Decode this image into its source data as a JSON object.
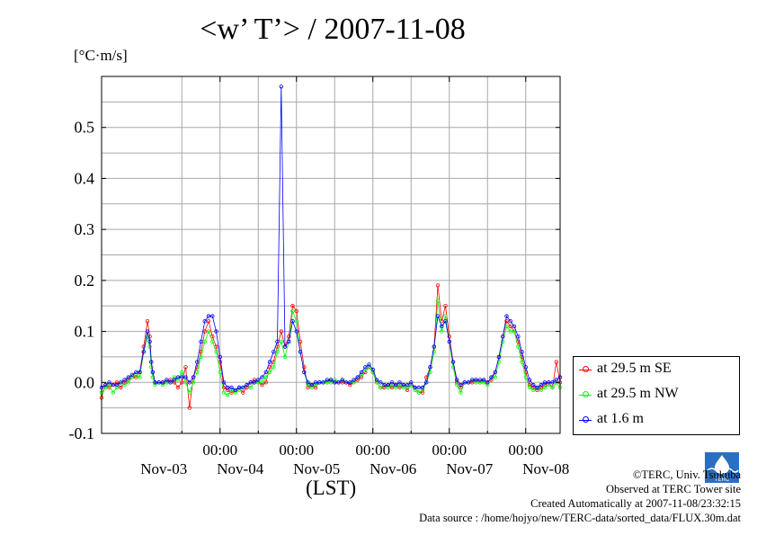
{
  "title": "<w’ T’> / 2007-11-08",
  "unit_label": "[°C·m/s]",
  "x_axis_label": "(LST)",
  "credits": {
    "copyright": "©TERC, Univ. Tsukuba",
    "site": "Observed at TERC Tower site",
    "created": "Created Automatically at 2007-11-08/23:32:15",
    "source": "Data source : /home/hojyo/new/TERC-data/sorted_data/FLUX.30m.dat"
  },
  "logo_text": "TERC",
  "chart_data": {
    "type": "line",
    "title": "<w’ T’> / 2007-11-08",
    "ylabel": "[°C·m/s]",
    "xlabel": "(LST)",
    "ylim": [
      -0.1,
      0.6
    ],
    "xlim_days": [
      -0.55,
      5.45
    ],
    "y_ticks": [
      -0.1,
      0.0,
      0.1,
      0.2,
      0.3,
      0.4,
      0.5
    ],
    "y_tick_labels": [
      "-0.1",
      "0.0",
      "0.1",
      "0.2",
      "0.3",
      "0.4",
      "0.5"
    ],
    "x_ticks_time": [
      1,
      2,
      3,
      4,
      5
    ],
    "x_tick_time_labels": [
      "00:00",
      "00:00",
      "00:00",
      "00:00",
      "00:00"
    ],
    "x_day_label_positions": [
      0.5,
      1.5,
      2.5,
      3.5,
      4.5,
      5.5
    ],
    "x_day_labels": [
      "Nov-03",
      "Nov-04",
      "Nov-05",
      "Nov-06",
      "Nov-07",
      "Nov-08"
    ],
    "grid": true,
    "legend_position": "right-bottom, outside plot",
    "series": [
      {
        "name": "at 29.5 m SE",
        "color": "#ff0000",
        "x": [
          -0.55,
          -0.5,
          -0.45,
          -0.4,
          -0.35,
          -0.3,
          -0.25,
          -0.2,
          -0.15,
          -0.1,
          -0.05,
          0.0,
          0.05,
          0.08,
          0.1,
          0.12,
          0.15,
          0.2,
          0.25,
          0.3,
          0.35,
          0.4,
          0.45,
          0.5,
          0.55,
          0.6,
          0.65,
          0.7,
          0.75,
          0.8,
          0.85,
          0.9,
          0.95,
          1.0,
          1.05,
          1.1,
          1.15,
          1.2,
          1.25,
          1.3,
          1.35,
          1.4,
          1.45,
          1.5,
          1.55,
          1.6,
          1.65,
          1.7,
          1.75,
          1.8,
          1.85,
          1.9,
          1.95,
          2.0,
          2.05,
          2.1,
          2.15,
          2.2,
          2.25,
          2.3,
          2.35,
          2.4,
          2.45,
          2.5,
          2.55,
          2.6,
          2.65,
          2.7,
          2.75,
          2.8,
          2.85,
          2.9,
          2.95,
          3.0,
          3.05,
          3.1,
          3.15,
          3.2,
          3.25,
          3.3,
          3.35,
          3.4,
          3.45,
          3.5,
          3.55,
          3.6,
          3.65,
          3.7,
          3.75,
          3.8,
          3.85,
          3.9,
          3.95,
          4.0,
          4.05,
          4.1,
          4.15,
          4.2,
          4.25,
          4.3,
          4.35,
          4.4,
          4.45,
          4.5,
          4.55,
          4.6,
          4.65,
          4.7,
          4.75,
          4.8,
          4.85,
          4.9,
          4.95,
          5.0,
          5.05,
          5.1,
          5.15,
          5.2,
          5.25,
          5.3,
          5.35,
          5.4,
          5.45
        ],
        "y": [
          -0.03,
          -0.005,
          -0.01,
          -0.005,
          0.0,
          -0.01,
          0.0,
          0.005,
          0.01,
          0.01,
          0.02,
          0.07,
          0.12,
          0.09,
          0.04,
          0.02,
          0.0,
          0.0,
          0.0,
          0.0,
          0.005,
          0.0,
          -0.01,
          0.0,
          0.03,
          -0.05,
          0.01,
          0.03,
          0.06,
          0.1,
          0.12,
          0.09,
          0.07,
          0.04,
          -0.01,
          -0.015,
          -0.02,
          -0.015,
          -0.01,
          -0.02,
          -0.01,
          0.0,
          0.005,
          0.0,
          -0.005,
          0.0,
          0.03,
          0.04,
          0.07,
          0.1,
          0.07,
          0.09,
          0.15,
          0.14,
          0.08,
          0.03,
          -0.01,
          -0.005,
          -0.01,
          0.0,
          0.0,
          0.0,
          0.005,
          0.0,
          0.0,
          0.0,
          0.0,
          -0.005,
          0.0,
          0.005,
          0.01,
          0.02,
          0.03,
          0.02,
          0.0,
          -0.01,
          -0.01,
          -0.005,
          -0.01,
          -0.005,
          -0.01,
          -0.005,
          -0.015,
          -0.005,
          -0.01,
          -0.02,
          -0.02,
          0.01,
          0.03,
          0.07,
          0.19,
          0.12,
          0.15,
          0.09,
          0.04,
          0.0,
          -0.01,
          0.0,
          0.0,
          0.0,
          0.005,
          0.0,
          0.005,
          0.0,
          0.005,
          0.02,
          0.05,
          0.09,
          0.12,
          0.11,
          0.1,
          0.08,
          0.05,
          0.02,
          -0.005,
          -0.01,
          -0.015,
          -0.01,
          -0.005,
          0.0,
          -0.01,
          0.04,
          0.0
        ]
      },
      {
        "name": "at 29.5 m NW",
        "color": "#00ff00",
        "x": [
          -0.55,
          -0.5,
          -0.45,
          -0.4,
          -0.35,
          -0.3,
          -0.25,
          -0.2,
          -0.15,
          -0.1,
          -0.05,
          0.0,
          0.05,
          0.08,
          0.1,
          0.12,
          0.15,
          0.2,
          0.25,
          0.3,
          0.35,
          0.4,
          0.45,
          0.5,
          0.55,
          0.6,
          0.65,
          0.7,
          0.75,
          0.8,
          0.85,
          0.9,
          0.95,
          1.0,
          1.05,
          1.1,
          1.15,
          1.2,
          1.25,
          1.3,
          1.35,
          1.4,
          1.45,
          1.5,
          1.55,
          1.6,
          1.65,
          1.7,
          1.75,
          1.8,
          1.85,
          1.9,
          1.95,
          2.0,
          2.05,
          2.1,
          2.15,
          2.2,
          2.25,
          2.3,
          2.35,
          2.4,
          2.45,
          2.5,
          2.55,
          2.6,
          2.65,
          2.7,
          2.75,
          2.8,
          2.85,
          2.9,
          2.95,
          3.0,
          3.05,
          3.1,
          3.15,
          3.2,
          3.25,
          3.3,
          3.35,
          3.4,
          3.45,
          3.5,
          3.55,
          3.6,
          3.65,
          3.7,
          3.75,
          3.8,
          3.85,
          3.9,
          3.95,
          4.0,
          4.05,
          4.1,
          4.15,
          4.2,
          4.25,
          4.3,
          4.35,
          4.4,
          4.45,
          4.5,
          4.55,
          4.6,
          4.65,
          4.7,
          4.75,
          4.8,
          4.85,
          4.9,
          4.95,
          5.0,
          5.05,
          5.1,
          5.15,
          5.2,
          5.25,
          5.3,
          5.35,
          5.4,
          5.45
        ],
        "y": [
          -0.02,
          -0.01,
          -0.005,
          -0.02,
          -0.01,
          0.0,
          -0.005,
          0.0,
          0.01,
          0.015,
          0.01,
          0.06,
          0.09,
          0.07,
          0.03,
          0.01,
          -0.005,
          0.0,
          -0.005,
          0.0,
          0.0,
          0.01,
          0.005,
          0.02,
          0.0,
          -0.02,
          0.0,
          0.02,
          0.05,
          0.08,
          0.1,
          0.08,
          0.06,
          0.02,
          -0.02,
          -0.025,
          -0.015,
          -0.02,
          -0.015,
          -0.01,
          -0.005,
          -0.01,
          0.0,
          0.0,
          0.0,
          0.01,
          0.02,
          0.03,
          0.06,
          0.08,
          0.05,
          0.08,
          0.14,
          0.12,
          0.06,
          0.02,
          -0.005,
          -0.01,
          -0.005,
          0.0,
          0.0,
          0.0,
          0.0,
          0.005,
          0.0,
          0.005,
          0.0,
          0.0,
          0.0,
          0.01,
          0.015,
          0.025,
          0.03,
          0.02,
          0.0,
          -0.01,
          -0.005,
          -0.01,
          -0.005,
          -0.01,
          -0.005,
          -0.01,
          -0.01,
          -0.005,
          -0.015,
          -0.02,
          -0.015,
          0.0,
          0.02,
          0.06,
          0.16,
          0.1,
          0.13,
          0.08,
          0.03,
          -0.005,
          -0.02,
          0.0,
          0.0,
          0.005,
          0.0,
          0.0,
          0.0,
          -0.005,
          0.01,
          0.01,
          0.04,
          0.08,
          0.11,
          0.1,
          0.1,
          0.07,
          0.04,
          0.01,
          -0.01,
          -0.015,
          -0.01,
          -0.015,
          -0.01,
          -0.005,
          -0.01,
          0.0,
          -0.01
        ]
      },
      {
        "name": "at 1.6 m",
        "color": "#0000ff",
        "x": [
          -0.55,
          -0.5,
          -0.45,
          -0.4,
          -0.35,
          -0.3,
          -0.25,
          -0.2,
          -0.15,
          -0.1,
          -0.05,
          0.0,
          0.05,
          0.08,
          0.1,
          0.12,
          0.15,
          0.2,
          0.25,
          0.3,
          0.35,
          0.4,
          0.45,
          0.5,
          0.55,
          0.6,
          0.65,
          0.7,
          0.75,
          0.8,
          0.85,
          0.9,
          0.95,
          1.0,
          1.05,
          1.1,
          1.15,
          1.2,
          1.25,
          1.3,
          1.35,
          1.4,
          1.45,
          1.5,
          1.55,
          1.6,
          1.65,
          1.7,
          1.75,
          1.8,
          1.85,
          1.9,
          1.95,
          2.0,
          2.05,
          2.1,
          2.15,
          2.2,
          2.25,
          2.3,
          2.35,
          2.4,
          2.45,
          2.5,
          2.55,
          2.6,
          2.65,
          2.7,
          2.75,
          2.8,
          2.85,
          2.9,
          2.95,
          3.0,
          3.05,
          3.1,
          3.15,
          3.2,
          3.25,
          3.3,
          3.35,
          3.4,
          3.45,
          3.5,
          3.55,
          3.6,
          3.65,
          3.7,
          3.75,
          3.8,
          3.85,
          3.9,
          3.95,
          4.0,
          4.05,
          4.1,
          4.15,
          4.2,
          4.25,
          4.3,
          4.35,
          4.4,
          4.45,
          4.5,
          4.55,
          4.6,
          4.65,
          4.7,
          4.75,
          4.8,
          4.85,
          4.9,
          4.95,
          5.0,
          5.05,
          5.1,
          5.15,
          5.2,
          5.25,
          5.3,
          5.35,
          5.4,
          5.45
        ],
        "y": [
          -0.01,
          -0.005,
          0.0,
          -0.005,
          -0.005,
          0.0,
          0.005,
          0.01,
          0.015,
          0.02,
          0.02,
          0.06,
          0.1,
          0.08,
          0.04,
          0.02,
          0.0,
          0.0,
          0.0,
          0.005,
          0.0,
          0.005,
          0.01,
          0.01,
          0.01,
          0.0,
          0.01,
          0.04,
          0.08,
          0.12,
          0.13,
          0.13,
          0.1,
          0.05,
          0.0,
          -0.01,
          -0.01,
          -0.015,
          -0.01,
          -0.01,
          -0.005,
          0.0,
          0.0,
          0.005,
          0.01,
          0.02,
          0.04,
          0.06,
          0.08,
          0.58,
          0.07,
          0.08,
          0.12,
          0.1,
          0.06,
          0.02,
          0.0,
          -0.005,
          0.0,
          0.0,
          0.0,
          0.005,
          0.005,
          0.0,
          0.0,
          0.005,
          0.0,
          0.0,
          0.005,
          0.01,
          0.02,
          0.03,
          0.035,
          0.025,
          0.005,
          0.0,
          -0.005,
          -0.005,
          0.0,
          -0.005,
          0.0,
          -0.005,
          -0.005,
          0.0,
          -0.01,
          -0.01,
          -0.01,
          0.0,
          0.03,
          0.07,
          0.13,
          0.11,
          0.12,
          0.08,
          0.04,
          0.005,
          -0.005,
          0.0,
          0.0,
          0.005,
          0.005,
          0.005,
          0.005,
          0.0,
          0.01,
          0.02,
          0.05,
          0.09,
          0.13,
          0.12,
          0.11,
          0.09,
          0.06,
          0.03,
          0.005,
          -0.005,
          -0.01,
          -0.005,
          0.0,
          0.0,
          0.0,
          0.005,
          0.01
        ]
      }
    ]
  }
}
